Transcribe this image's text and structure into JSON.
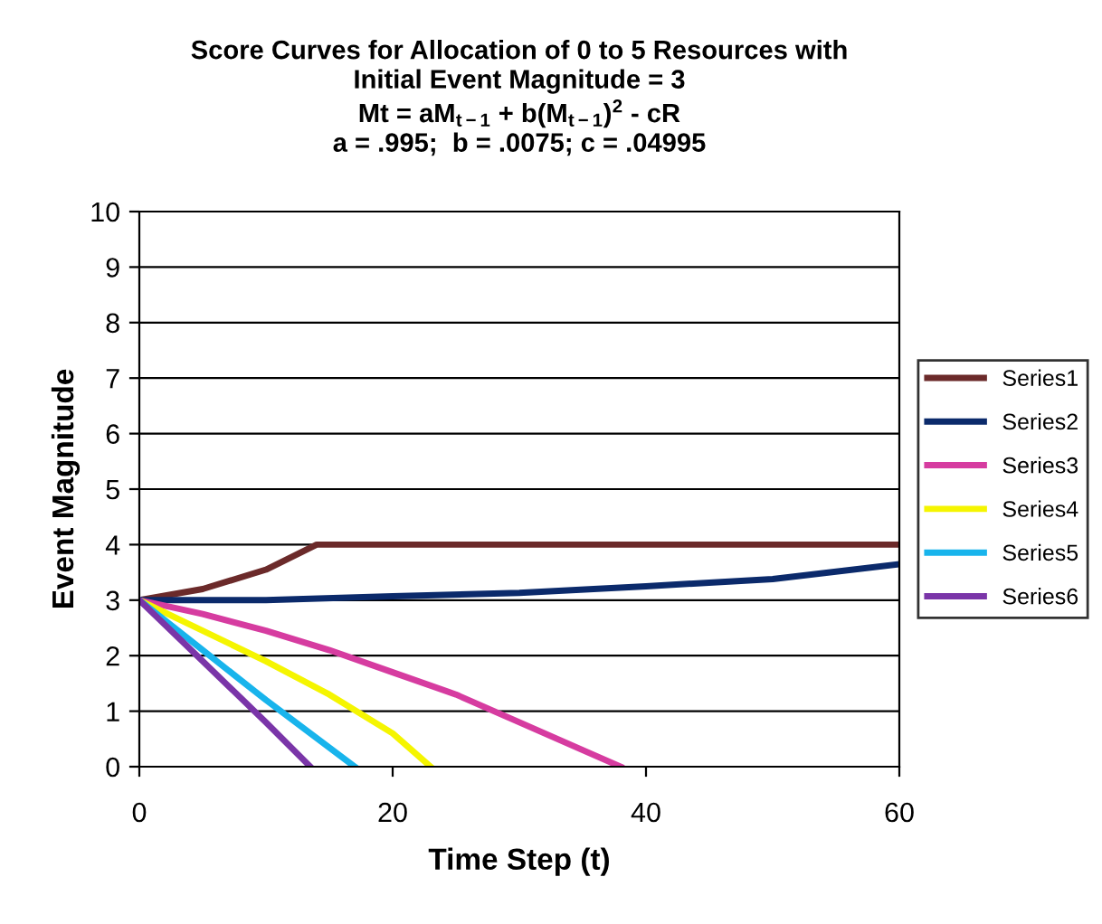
{
  "chart_data": {
    "type": "line",
    "title": "Score Curves for Allocation of 0 to 5 Resources with\nInitial Event Magnitude = 3\nMt = aM$_{t−1}$ + b(M$_{t−1}$)$^{2}$ - cR\na = .995;  b = .0075; c = .04995",
    "xlabel": "Time Step (t)",
    "ylabel": "Event Magnitude",
    "xlim": [
      0,
      60
    ],
    "xticks": [
      0,
      20,
      40,
      60
    ],
    "ylim": [
      0,
      10
    ],
    "yticks": [
      0,
      1,
      2,
      3,
      4,
      5,
      6,
      7,
      8,
      9,
      10
    ],
    "grid": "y",
    "legend": "right",
    "marker": "none",
    "line_style": "solid",
    "series": [
      {
        "name": "Series1",
        "color": "#6b2a2a",
        "x": [
          0,
          5,
          10,
          14,
          60
        ],
        "values": [
          3,
          3.2,
          3.55,
          4,
          4
        ]
      },
      {
        "name": "Series2",
        "color": "#0b2a6b",
        "x": [
          0,
          10,
          20,
          30,
          40,
          50,
          60
        ],
        "values": [
          3,
          3.0,
          3.07,
          3.13,
          3.25,
          3.38,
          3.65
        ]
      },
      {
        "name": "Series3",
        "color": "#d63ca0",
        "x": [
          0,
          5,
          10,
          15,
          20,
          25,
          30,
          35,
          38
        ],
        "values": [
          3,
          2.75,
          2.45,
          2.1,
          1.7,
          1.3,
          0.8,
          0.3,
          0
        ]
      },
      {
        "name": "Series4",
        "color": "#f5f500",
        "x": [
          0,
          10,
          15,
          20,
          23
        ],
        "values": [
          3,
          1.9,
          1.3,
          0.6,
          0
        ]
      },
      {
        "name": "Series5",
        "color": "#18b4ec",
        "x": [
          0,
          5,
          10,
          17
        ],
        "values": [
          3,
          2.1,
          1.2,
          0
        ]
      },
      {
        "name": "Series6",
        "color": "#7a35a8",
        "x": [
          0,
          5,
          10,
          13.5
        ],
        "values": [
          3,
          1.9,
          0.8,
          0
        ]
      }
    ]
  }
}
